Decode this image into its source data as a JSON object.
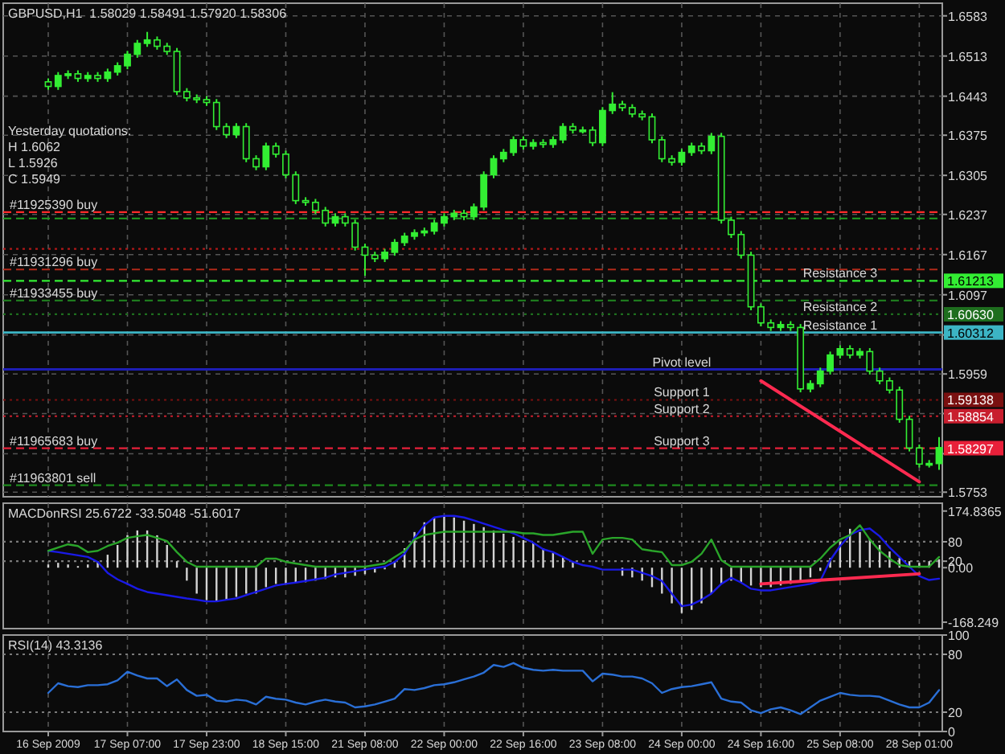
{
  "chart_data": [
    {
      "type": "candlestick",
      "title": "GBPUSD,H1  1.58029 1.58491 1.57920 1.58306",
      "tick_labels": "y",
      "grid": true,
      "color": "#33ee33",
      "categories": [
        "16 Sep 2009",
        null,
        null,
        null,
        null,
        null,
        null,
        null,
        "17 Sep 07:00",
        null,
        null,
        null,
        null,
        null,
        null,
        null,
        "17 Sep 23:00",
        null,
        null,
        null,
        null,
        null,
        null,
        null,
        "18 Sep 15:00",
        null,
        null,
        null,
        null,
        null,
        null,
        null,
        "21 Sep 08:00",
        null,
        null,
        null,
        null,
        null,
        null,
        null,
        "22 Sep 00:00",
        null,
        null,
        null,
        null,
        null,
        null,
        null,
        "22 Sep 16:00",
        null,
        null,
        null,
        null,
        null,
        null,
        null,
        "23 Sep 08:00",
        null,
        null,
        null,
        null,
        null,
        null,
        null,
        "24 Sep 00:00",
        null,
        null,
        null,
        null,
        null,
        null,
        null,
        "24 Sep 16:00",
        null,
        null,
        null,
        null,
        null,
        null,
        null,
        "25 Sep 08:00",
        null,
        null,
        null,
        null,
        null,
        null,
        null,
        "28 Sep 01:00",
        null,
        null
      ],
      "ohlc": [
        [
          1.6468,
          1.6474,
          1.6454,
          1.646
        ],
        [
          1.646,
          1.6485,
          1.6454,
          1.6479
        ],
        [
          1.6479,
          1.6488,
          1.6473,
          1.6482
        ],
        [
          1.6482,
          1.6488,
          1.6468,
          1.6474
        ],
        [
          1.6474,
          1.6485,
          1.6468,
          1.6479
        ],
        [
          1.6479,
          1.6485,
          1.6468,
          1.6474
        ],
        [
          1.6474,
          1.6491,
          1.6468,
          1.6485
        ],
        [
          1.6485,
          1.6502,
          1.6479,
          1.6496
        ],
        [
          1.6496,
          1.6522,
          1.649,
          1.6516
        ],
        [
          1.6516,
          1.6541,
          1.651,
          1.6535
        ],
        [
          1.6535,
          1.6555,
          1.6529,
          1.6541
        ],
        [
          1.6541,
          1.6547,
          1.6524,
          1.653
        ],
        [
          1.653,
          1.6536,
          1.6515,
          1.6521
        ],
        [
          1.6521,
          1.6527,
          1.6445,
          1.6451
        ],
        [
          1.6451,
          1.6457,
          1.6434,
          1.644
        ],
        [
          1.644,
          1.6446,
          1.6431,
          1.6437
        ],
        [
          1.6437,
          1.6443,
          1.6426,
          1.6432
        ],
        [
          1.6432,
          1.6438,
          1.6384,
          1.639
        ],
        [
          1.639,
          1.6396,
          1.637,
          1.6376
        ],
        [
          1.6376,
          1.6396,
          1.637,
          1.639
        ],
        [
          1.639,
          1.6396,
          1.6328,
          1.6334
        ],
        [
          1.6334,
          1.634,
          1.6314,
          1.632
        ],
        [
          1.632,
          1.6362,
          1.6314,
          1.6356
        ],
        [
          1.6356,
          1.6362,
          1.6336,
          1.6342
        ],
        [
          1.6342,
          1.6348,
          1.63,
          1.6306
        ],
        [
          1.6306,
          1.6312,
          1.6255,
          1.6261
        ],
        [
          1.6261,
          1.6267,
          1.6252,
          1.6258
        ],
        [
          1.6258,
          1.6264,
          1.6238,
          1.6244
        ],
        [
          1.6244,
          1.625,
          1.6216,
          1.6222
        ],
        [
          1.6222,
          1.6239,
          1.6216,
          1.6233
        ],
        [
          1.6233,
          1.6239,
          1.6216,
          1.6222
        ],
        [
          1.6222,
          1.6228,
          1.6174,
          1.618
        ],
        [
          1.618,
          1.6186,
          1.613,
          1.6166
        ],
        [
          1.6166,
          1.6172,
          1.6154,
          1.616
        ],
        [
          1.616,
          1.6177,
          1.6154,
          1.6171
        ],
        [
          1.6171,
          1.6194,
          1.6165,
          1.6188
        ],
        [
          1.6188,
          1.6205,
          1.6182,
          1.6199
        ],
        [
          1.6199,
          1.6211,
          1.6193,
          1.6205
        ],
        [
          1.6205,
          1.6214,
          1.6199,
          1.6208
        ],
        [
          1.6208,
          1.6228,
          1.6202,
          1.6222
        ],
        [
          1.6222,
          1.6239,
          1.6216,
          1.6233
        ],
        [
          1.6233,
          1.6245,
          1.6227,
          1.6239
        ],
        [
          1.6239,
          1.6245,
          1.6227,
          1.6233
        ],
        [
          1.6233,
          1.6256,
          1.6227,
          1.625
        ],
        [
          1.625,
          1.6312,
          1.6244,
          1.6306
        ],
        [
          1.6306,
          1.634,
          1.63,
          1.6334
        ],
        [
          1.6334,
          1.6351,
          1.6328,
          1.6345
        ],
        [
          1.6345,
          1.6373,
          1.6339,
          1.6367
        ],
        [
          1.6367,
          1.6373,
          1.635,
          1.6356
        ],
        [
          1.6356,
          1.6368,
          1.635,
          1.6362
        ],
        [
          1.6362,
          1.6368,
          1.6353,
          1.6359
        ],
        [
          1.6359,
          1.6373,
          1.6353,
          1.6367
        ],
        [
          1.6367,
          1.6396,
          1.6361,
          1.639
        ],
        [
          1.639,
          1.6396,
          1.6378,
          1.6384
        ],
        [
          1.6384,
          1.639,
          1.6378,
          1.6384
        ],
        [
          1.6384,
          1.639,
          1.6356,
          1.6362
        ],
        [
          1.6362,
          1.6424,
          1.6356,
          1.6418
        ],
        [
          1.6418,
          1.645,
          1.6412,
          1.6429
        ],
        [
          1.6429,
          1.6435,
          1.6417,
          1.6423
        ],
        [
          1.6423,
          1.6429,
          1.6406,
          1.6412
        ],
        [
          1.6412,
          1.6418,
          1.6401,
          1.6407
        ],
        [
          1.6407,
          1.6413,
          1.6361,
          1.6367
        ],
        [
          1.6367,
          1.6373,
          1.6328,
          1.6334
        ],
        [
          1.6334,
          1.634,
          1.6322,
          1.6328
        ],
        [
          1.6328,
          1.6351,
          1.6322,
          1.6345
        ],
        [
          1.6345,
          1.6362,
          1.6339,
          1.6356
        ],
        [
          1.6356,
          1.6362,
          1.6342,
          1.6348
        ],
        [
          1.6348,
          1.6379,
          1.6342,
          1.6373
        ],
        [
          1.6373,
          1.6379,
          1.6221,
          1.6227
        ],
        [
          1.6227,
          1.6233,
          1.6196,
          1.6202
        ],
        [
          1.6202,
          1.6208,
          1.616,
          1.6166
        ],
        [
          1.6166,
          1.6172,
          1.607,
          1.6076
        ],
        [
          1.6076,
          1.6082,
          1.6042,
          1.6048
        ],
        [
          1.6048,
          1.6054,
          1.6034,
          1.604
        ],
        [
          1.604,
          1.6051,
          1.6034,
          1.6045
        ],
        [
          1.6045,
          1.6051,
          1.6034,
          1.604
        ],
        [
          1.604,
          1.6046,
          1.5927,
          1.5933
        ],
        [
          1.5933,
          1.5948,
          1.5927,
          1.5942
        ],
        [
          1.5942,
          1.597,
          1.5936,
          1.5964
        ],
        [
          1.5964,
          1.5998,
          1.5958,
          1.5992
        ],
        [
          1.5992,
          1.6009,
          1.5986,
          1.6003
        ],
        [
          1.6003,
          1.6009,
          1.5986,
          1.5992
        ],
        [
          1.5992,
          1.6004,
          1.5986,
          1.5998
        ],
        [
          1.5998,
          1.6004,
          1.5958,
          1.5964
        ],
        [
          1.5964,
          1.597,
          1.5941,
          1.5947
        ],
        [
          1.5947,
          1.5953,
          1.5925,
          1.5931
        ],
        [
          1.5931,
          1.5937,
          1.5874,
          1.588
        ],
        [
          1.588,
          1.5886,
          1.5824,
          1.583
        ],
        [
          1.583,
          1.5836,
          1.5796,
          1.5802
        ],
        [
          1.5802,
          1.5809,
          1.5796,
          1.5803
        ],
        [
          1.58029,
          1.58491,
          1.5792,
          1.58306
        ]
      ],
      "series": [
        {
          "type": "line",
          "color": "#ff2a50",
          "x": [
            "24 Sep 16:00",
            "28 Sep 01:00"
          ],
          "values": [
            1.5947,
            1.5771
          ]
        }
      ],
      "ylim": [
        1.5745,
        1.6605
      ],
      "yticks": [
        1.6583,
        1.6513,
        1.6443,
        1.6375,
        1.6305,
        1.6237,
        1.6167,
        1.6097,
        {
          "value": 1.6027,
          "label": null
        },
        1.5959,
        {
          "value": 1.589,
          "label": null
        },
        {
          "value": 1.582,
          "label": null
        },
        1.5753
      ],
      "ref_lines": [
        {
          "axis": "y",
          "value": 1.6241,
          "color": "#ff2b2b",
          "line_style": "dashed"
        },
        {
          "axis": "y",
          "value": 1.623,
          "color": "#22a022",
          "line_style": "dashed"
        },
        {
          "axis": "y",
          "value": 1.6177,
          "color": "#b01818",
          "line_style": "dotted"
        },
        {
          "axis": "y",
          "value": 1.6141,
          "color": "#b02a1a",
          "line_style": "dashed"
        },
        {
          "axis": "y",
          "value": 1.61213,
          "label": "1.61213",
          "color": "#33ee33",
          "line_style": "dashed"
        },
        {
          "axis": "y",
          "value": 1.6087,
          "color": "#1e7a1e",
          "line_style": "dashed"
        },
        {
          "axis": "y",
          "value": 1.6063,
          "label": "1.60630",
          "color": "#1e6e1e",
          "line_style": "dotted"
        },
        {
          "axis": "y",
          "value": 1.60312,
          "label": "1.60312",
          "color": "#3cb4c4",
          "line_style": "solid"
        },
        {
          "axis": "y",
          "value": 1.5967,
          "color": "#1e1eb4",
          "line_style": "solid"
        },
        {
          "axis": "y",
          "value": 1.59138,
          "label": "1.59138",
          "color": "#7a1010",
          "line_style": "dotted"
        },
        {
          "axis": "y",
          "value": 1.58854,
          "label": "1.58854",
          "color": "#c81e2e",
          "line_style": "dotted"
        },
        {
          "axis": "y",
          "value": 1.58297,
          "label": "1.58297",
          "color": "#e8203a",
          "line_style": "dashed"
        },
        {
          "axis": "y",
          "value": 1.5765,
          "color": "#1e8a1e",
          "line_style": "dashed"
        }
      ],
      "annotations": [
        "Yesterday quotations:",
        "H 1.6062",
        "L 1.5926",
        "C 1.5949",
        {
          "text": "#11925390 buy",
          "x": "16 Sep 2009",
          "y": 1.6241
        },
        {
          "text": "#11931296 buy",
          "x": "16 Sep 2009",
          "y": 1.6141
        },
        {
          "text": "#11933455 buy",
          "x": "16 Sep 2009",
          "y": 1.6087
        },
        {
          "text": "#11965683 buy",
          "x": "16 Sep 2009",
          "y": 1.58297
        },
        {
          "text": "#11963801 sell",
          "x": "16 Sep 2009",
          "y": 1.5765
        },
        {
          "text": "Resistance 3",
          "x": "25 Sep 08:00",
          "y": 1.61213
        },
        {
          "text": "Resistance 2",
          "x": "25 Sep 08:00",
          "y": 1.6063
        },
        {
          "text": "Resistance 1",
          "x": "25 Sep 08:00",
          "y": 1.60312
        },
        {
          "text": "Pivot level",
          "x": "24 Sep 00:00",
          "y": 1.5967
        },
        {
          "text": "Support 1",
          "x": "24 Sep 00:00",
          "y": 1.59138
        },
        {
          "text": "Support 2",
          "x": "24 Sep 00:00",
          "y": 1.58854
        },
        {
          "text": "Support 3",
          "x": "24 Sep 00:00",
          "y": 1.58297
        }
      ]
    },
    {
      "type": "bar",
      "title": "MACDonRSI 25.6722 -33.5048 -51.6017",
      "tick_labels": "y",
      "grid": "x",
      "categories": [
        "16 Sep 2009",
        null,
        null,
        null,
        null,
        null,
        null,
        null,
        "17 Sep 07:00",
        null,
        null,
        null,
        null,
        null,
        null,
        null,
        "17 Sep 23:00",
        null,
        null,
        null,
        null,
        null,
        null,
        null,
        "18 Sep 15:00",
        null,
        null,
        null,
        null,
        null,
        null,
        null,
        "21 Sep 08:00",
        null,
        null,
        null,
        null,
        null,
        null,
        null,
        "22 Sep 00:00",
        null,
        null,
        null,
        null,
        null,
        null,
        null,
        "22 Sep 16:00",
        null,
        null,
        null,
        null,
        null,
        null,
        null,
        "23 Sep 08:00",
        null,
        null,
        null,
        null,
        null,
        null,
        null,
        "24 Sep 00:00",
        null,
        null,
        null,
        null,
        null,
        null,
        null,
        "24 Sep 16:00",
        null,
        null,
        null,
        null,
        null,
        null,
        null,
        "25 Sep 08:00",
        null,
        null,
        null,
        null,
        null,
        null,
        null,
        "28 Sep 01:00",
        null,
        null
      ],
      "series": [
        {
          "color": "#d4d4d4",
          "values": [
            10,
            15,
            10,
            5,
            10,
            20,
            40,
            70,
            100,
            115,
            115,
            100,
            70,
            20,
            -40,
            -80,
            -100,
            -105,
            -100,
            -90,
            -80,
            -80,
            -60,
            -50,
            -50,
            -45,
            -45,
            -40,
            -35,
            -30,
            -30,
            -25,
            -20,
            -15,
            -5,
            20,
            60,
            110,
            140,
            155,
            160,
            155,
            145,
            135,
            125,
            115,
            105,
            95,
            85,
            75,
            60,
            45,
            35,
            20,
            null,
            null,
            null,
            null,
            -25,
            -30,
            -40,
            -60,
            -80,
            -110,
            -140,
            -130,
            -110,
            -80,
            -50,
            -40,
            -45,
            -55,
            -60,
            -60,
            -55,
            -50,
            -40,
            -30,
            -10,
            30,
            80,
            120,
            110,
            90,
            70,
            50,
            30,
            20,
            15,
            20,
            26
          ]
        },
        {
          "type": "line",
          "color": "#1a1ae6",
          "values": [
            52,
            48,
            43,
            38,
            33,
            18,
            -16,
            -36,
            -50,
            -65,
            -75,
            -80,
            -85,
            -90,
            -95,
            -99,
            -104,
            -104,
            -99,
            -95,
            -85,
            -75,
            -65,
            -55,
            -50,
            -46,
            -41,
            -36,
            -31,
            -21,
            -16,
            -11,
            -6,
            -1,
            3,
            18,
            43,
            92,
            131,
            155,
            160,
            160,
            155,
            146,
            136,
            126,
            116,
            106,
            92,
            77,
            57,
            48,
            33,
            18,
            8,
            3,
            -6,
            -6,
            -6,
            -6,
            -16,
            -26,
            -41,
            -80,
            -119,
            -114,
            -99,
            -80,
            -50,
            -31,
            -46,
            -65,
            -70,
            -70,
            -65,
            -60,
            -55,
            -50,
            -41,
            23,
            67,
            101,
            116,
            121,
            97,
            62,
            33,
            3,
            -26,
            -38,
            -34
          ]
        },
        {
          "type": "line",
          "color": "#2aa52a",
          "values": [
            52,
            62,
            72,
            67,
            48,
            52,
            67,
            77,
            92,
            97,
            101,
            92,
            82,
            48,
            18,
            3,
            3,
            3,
            3,
            3,
            3,
            3,
            28,
            28,
            18,
            13,
            8,
            3,
            3,
            3,
            3,
            3,
            3,
            8,
            13,
            33,
            52,
            87,
            101,
            106,
            111,
            111,
            111,
            111,
            111,
            111,
            111,
            111,
            106,
            106,
            101,
            101,
            106,
            111,
            111,
            43,
            87,
            92,
            92,
            87,
            57,
            52,
            48,
            8,
            8,
            18,
            43,
            87,
            23,
            3,
            3,
            3,
            3,
            3,
            3,
            3,
            3,
            3,
            28,
            62,
            87,
            101,
            131,
            87,
            52,
            28,
            8,
            3,
            3,
            3,
            33
          ]
        },
        {
          "type": "line",
          "color": "#ff2a50",
          "x": [
            "24 Sep 16:00",
            "28 Sep 01:00"
          ],
          "values": [
            -50,
            -19
          ]
        }
      ],
      "ylim": [
        -188,
        199
      ],
      "yticks": [
        174.8365,
        80,
        20,
        {
          "value": 0,
          "label": "0.00"
        },
        -168.249
      ],
      "ref_lines": [
        {
          "axis": "y",
          "value": 80,
          "color": "#7a7a7a",
          "line_style": "dotted"
        },
        {
          "axis": "y",
          "value": 20,
          "color": "#7a7a7a",
          "line_style": "dotted"
        }
      ]
    },
    {
      "type": "line",
      "title": "RSI(14) 43.3136",
      "grid": "x",
      "color": "#2a6fd6",
      "categories": [
        "16 Sep 2009",
        null,
        null,
        null,
        null,
        null,
        null,
        null,
        "17 Sep 07:00",
        null,
        null,
        null,
        null,
        null,
        null,
        null,
        "17 Sep 23:00",
        null,
        null,
        null,
        null,
        null,
        null,
        null,
        "18 Sep 15:00",
        null,
        null,
        null,
        null,
        null,
        null,
        null,
        "21 Sep 08:00",
        null,
        null,
        null,
        null,
        null,
        null,
        null,
        "22 Sep 00:00",
        null,
        null,
        null,
        null,
        null,
        null,
        null,
        "22 Sep 16:00",
        null,
        null,
        null,
        null,
        null,
        null,
        null,
        "23 Sep 08:00",
        null,
        null,
        null,
        null,
        null,
        null,
        null,
        "24 Sep 00:00",
        null,
        null,
        null,
        null,
        null,
        null,
        null,
        "24 Sep 16:00",
        null,
        null,
        null,
        null,
        null,
        null,
        null,
        "25 Sep 08:00",
        null,
        null,
        null,
        null,
        null,
        null,
        null,
        "28 Sep 01:00",
        null,
        null
      ],
      "values": [
        40,
        50,
        47,
        46,
        48,
        48,
        49,
        53,
        62,
        58,
        55,
        55,
        47,
        54,
        43,
        37,
        38,
        32,
        31,
        33,
        32,
        28,
        36,
        34,
        33,
        30,
        28,
        31,
        33,
        31,
        30,
        25,
        26,
        28,
        31,
        34,
        44,
        43,
        45,
        48,
        49,
        51,
        54,
        57,
        61,
        69,
        67,
        71,
        66,
        64,
        63,
        64,
        63,
        63,
        63,
        52,
        60,
        59,
        57,
        57,
        55,
        50,
        40,
        44,
        46,
        47,
        49,
        51,
        34,
        31,
        30,
        22,
        19,
        23,
        25,
        22,
        18,
        25,
        32,
        36,
        40,
        38,
        37,
        37,
        36,
        32,
        28,
        25,
        25,
        30,
        43
      ],
      "ylim": [
        0,
        100
      ],
      "yticks": [
        100,
        80,
        20,
        0
      ],
      "ref_lines": [
        {
          "axis": "y",
          "value": 80,
          "color": "#7a7a7a",
          "line_style": "dotted"
        },
        {
          "axis": "y",
          "value": 20,
          "color": "#7a7a7a",
          "line_style": "dotted"
        }
      ]
    }
  ]
}
